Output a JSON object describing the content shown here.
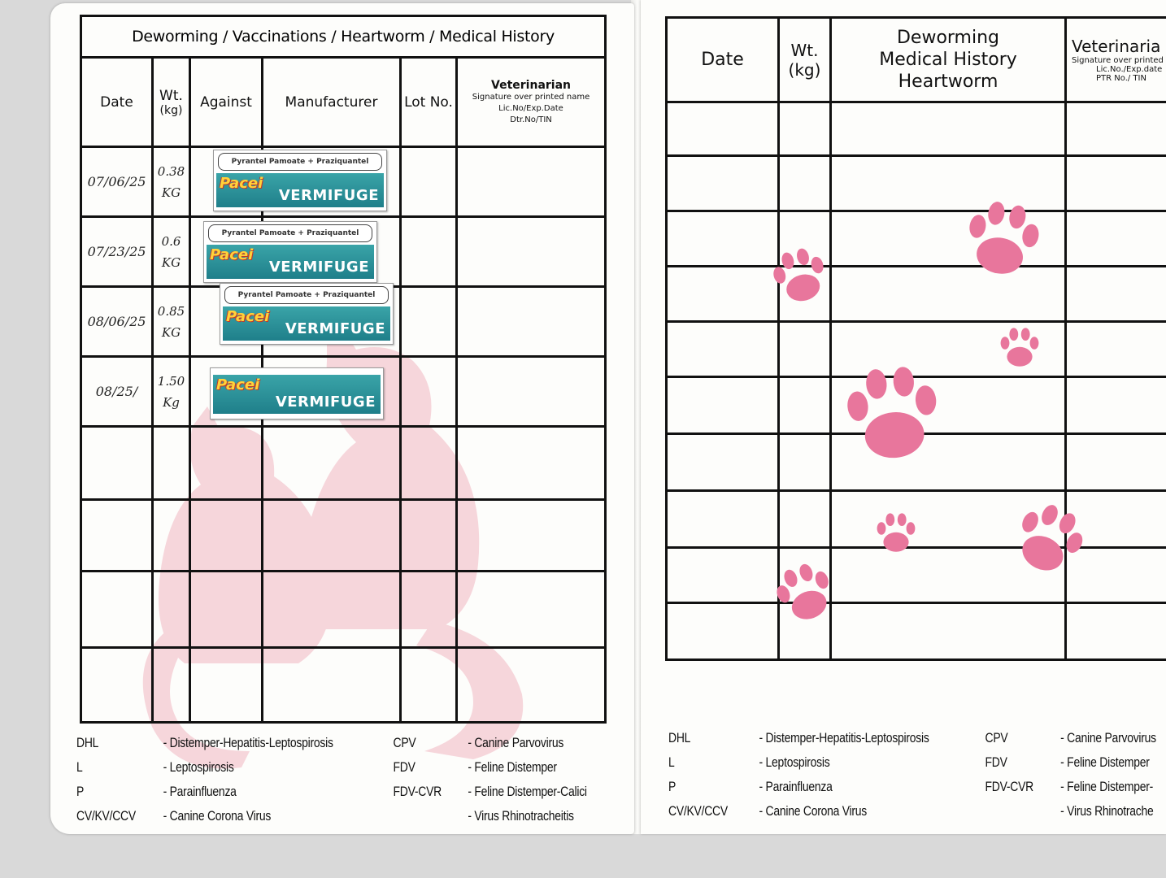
{
  "left_page": {
    "title": "Deworming / Vaccinations / Heartworm / Medical History",
    "headers": {
      "date": "Date",
      "wt_top": "Wt.",
      "wt_bottom": "(kg)",
      "against": "Against",
      "manufacturer": "Manufacturer",
      "lot": "Lot No.",
      "vet_title": "Veterinarian",
      "vet_line1": "Signature over printed name",
      "vet_line2": "Lic.No/Exp.Date",
      "vet_line3": "Dtr.No/TIN"
    },
    "rows": [
      {
        "date": "07/06/25",
        "wt": "0.38",
        "unit": "KG"
      },
      {
        "date": "07/23/25",
        "wt": "0.6",
        "unit": "KG"
      },
      {
        "date": "08/06/25",
        "wt": "0.85",
        "unit": "KG"
      },
      {
        "date": "08/25/",
        "wt": "1.50",
        "unit": "Kg"
      }
    ],
    "stickers": [
      {
        "drug": "Pyrantel Pamoate + Praziquantel",
        "brand": "Pacei",
        "label": "VERMIFUGE"
      },
      {
        "drug": "Pyrantel Pamoate + Praziquantel",
        "brand": "Pacei",
        "label": "VERMIFUGE"
      },
      {
        "drug": "Pyrantel Pamoate + Praziquantel",
        "brand": "Pacei",
        "label": "VERMIFUGE"
      },
      {
        "drug": "",
        "brand": "Pacei",
        "label": "VERMIFUGE"
      }
    ]
  },
  "right_page": {
    "headers": {
      "date": "Date",
      "wt_top": "Wt.",
      "wt_bottom": "(kg)",
      "history_line1": "Deworming",
      "history_line2": "Medical History",
      "history_line3": "Heartworm",
      "vet_title": "Veterinaria",
      "vet_line1": "Signature over printed n",
      "vet_line2": "Lic.No./Exp.date",
      "vet_line3": "PTR No./ TIN"
    }
  },
  "legend_left": [
    {
      "abbr": "DHL",
      "desc": "- Distemper-Hepatitis-Leptospirosis"
    },
    {
      "abbr": "L",
      "desc": "- Leptospirosis"
    },
    {
      "abbr": "P",
      "desc": "- Parainfluenza"
    },
    {
      "abbr": "CV/KV/CCV",
      "desc": "- Canine Corona Virus"
    },
    {
      "abbr": "CPV",
      "desc": "- Canine Parvovirus"
    },
    {
      "abbr": "FDV",
      "desc": "- Feline Distemper"
    },
    {
      "abbr": "FDV-CVR",
      "desc": "- Feline Distemper-Calici"
    },
    {
      "abbr": "",
      "desc": "- Virus Rhinotracheitis"
    }
  ],
  "legend_right": [
    {
      "abbr": "DHL",
      "desc": "- Distemper-Hepatitis-Leptospirosis"
    },
    {
      "abbr": "L",
      "desc": "- Leptospirosis"
    },
    {
      "abbr": "P",
      "desc": "- Parainfluenza"
    },
    {
      "abbr": "CV/KV/CCV",
      "desc": "- Canine Corona Virus"
    },
    {
      "abbr": "CPV",
      "desc": "- Canine Parvovirus"
    },
    {
      "abbr": "FDV",
      "desc": "- Feline Distemper"
    },
    {
      "abbr": "FDV-CVR",
      "desc": "- Feline Distemper-"
    },
    {
      "abbr": "",
      "desc": "- Virus Rhinotrache"
    }
  ],
  "colors": {
    "paw": "#e8769c",
    "cat": "#f6d6db",
    "line": "#111111"
  }
}
